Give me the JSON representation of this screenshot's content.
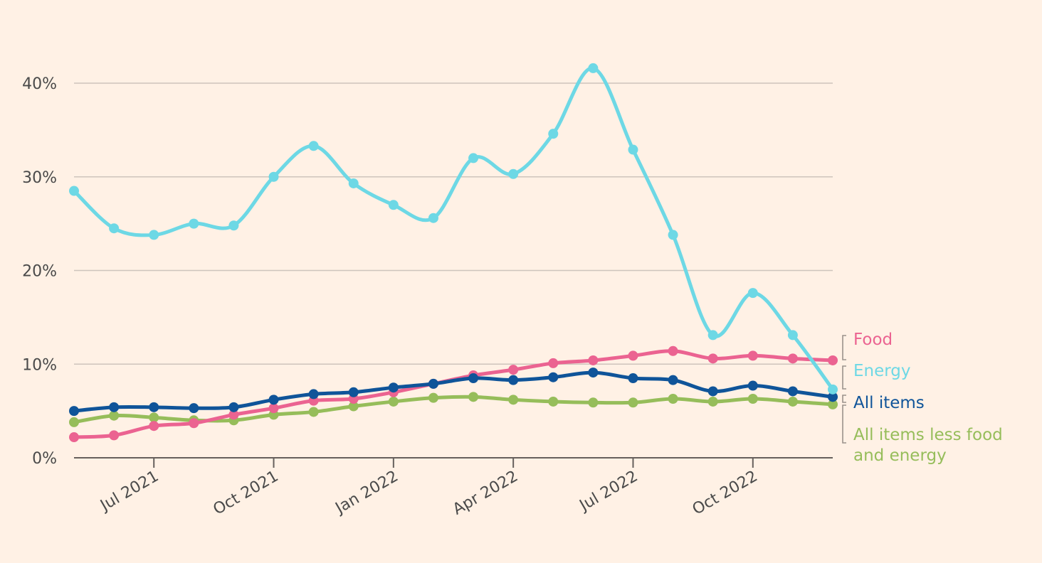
{
  "chart_data": {
    "type": "line",
    "title": "",
    "xlabel": "",
    "ylabel": "",
    "ylim": [
      0,
      40
    ],
    "y_ticks": [
      0,
      10,
      20,
      30,
      40
    ],
    "y_tick_labels": [
      "0%",
      "10%",
      "20%",
      "30%",
      "40%"
    ],
    "x_tick_labels": [
      "Jul 2021",
      "Oct 2021",
      "Jan 2022",
      "Apr 2022",
      "Jul 2022",
      "Oct 2022"
    ],
    "x": [
      "2021-05",
      "2021-06",
      "2021-07",
      "2021-08",
      "2021-09",
      "2021-10",
      "2021-11",
      "2021-12",
      "2022-01",
      "2022-02",
      "2022-03",
      "2022-04",
      "2022-05",
      "2022-06",
      "2022-07",
      "2022-08",
      "2022-09",
      "2022-10",
      "2022-11",
      "2022-12"
    ],
    "grid": true,
    "legend_placement": "right, at line ends",
    "series": [
      {
        "name": "Energy",
        "color": "#6DD8E5",
        "values": [
          28.5,
          24.5,
          23.8,
          25.0,
          24.8,
          30.0,
          33.3,
          29.3,
          27.0,
          25.6,
          32.0,
          30.3,
          34.6,
          41.6,
          32.9,
          23.8,
          13.1,
          17.6,
          13.1,
          7.3
        ]
      },
      {
        "name": "Food",
        "color": "#EB6391",
        "values": [
          2.2,
          2.4,
          3.4,
          3.7,
          4.6,
          5.3,
          6.1,
          6.3,
          7.0,
          7.9,
          8.8,
          9.4,
          10.1,
          10.4,
          10.9,
          11.4,
          10.6,
          10.9,
          10.6,
          10.4
        ]
      },
      {
        "name": "All items",
        "color": "#0F5499",
        "values": [
          5.0,
          5.4,
          5.4,
          5.3,
          5.4,
          6.2,
          6.8,
          7.0,
          7.5,
          7.9,
          8.5,
          8.3,
          8.6,
          9.1,
          8.5,
          8.3,
          7.1,
          7.7,
          7.1,
          6.5
        ]
      },
      {
        "name": "All items less food and energy",
        "color": "#96BD5A",
        "values": [
          3.8,
          4.5,
          4.3,
          4.0,
          4.0,
          4.6,
          4.9,
          5.5,
          6.0,
          6.4,
          6.5,
          6.2,
          6.0,
          5.9,
          5.9,
          6.3,
          6.0,
          6.3,
          6.0,
          5.7
        ]
      }
    ],
    "legend": [
      {
        "lines": [
          "Food"
        ],
        "color": "#EB6391"
      },
      {
        "lines": [
          "Energy"
        ],
        "color": "#6DD8E5"
      },
      {
        "lines": [
          "All items"
        ],
        "color": "#0F5499"
      },
      {
        "lines": [
          "All items less food",
          "and energy"
        ],
        "color": "#96BD5A"
      }
    ]
  }
}
